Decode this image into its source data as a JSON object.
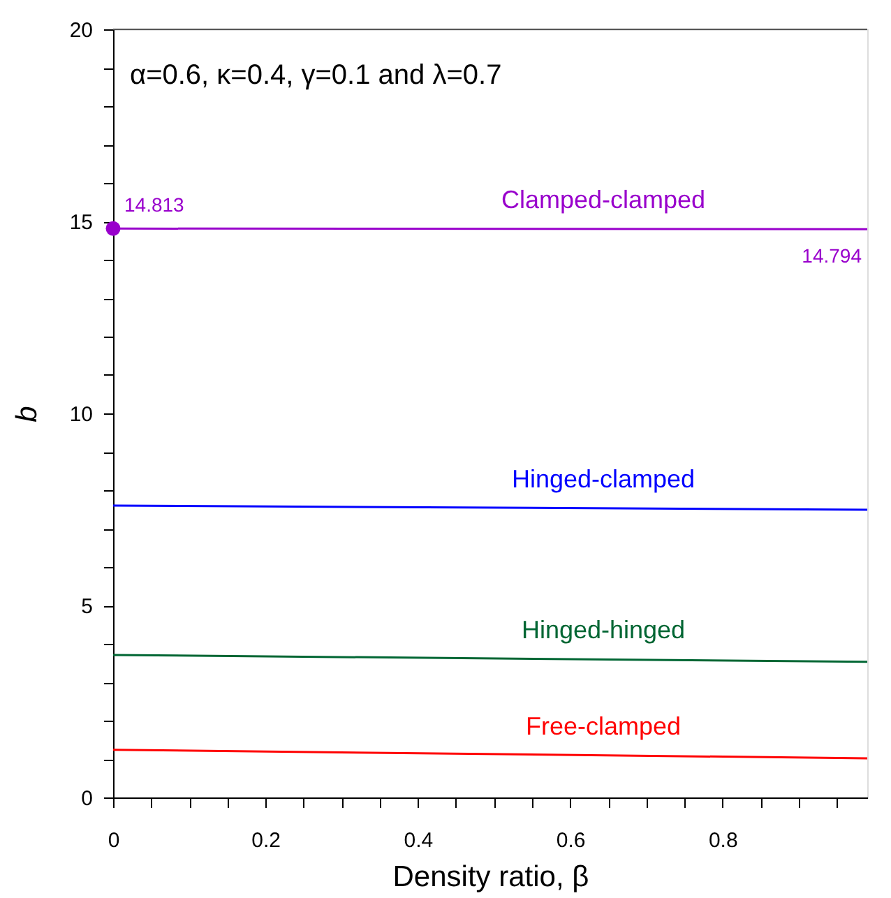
{
  "chart_data": {
    "type": "line",
    "xlabel": "Density ratio, β",
    "ylabel": "b",
    "annotations": [
      "α=0.6, κ=0.4, γ=0.1 and λ=0.7"
    ],
    "x": [
      0,
      0.99
    ],
    "series": [
      {
        "name": "Clamped-clamped",
        "color": "#9900cc",
        "values": [
          14.813,
          14.794
        ],
        "value_labels": [
          "14.813",
          "14.794"
        ],
        "marker": "circle"
      },
      {
        "name": "Hinged-clamped",
        "color": "#0000ff",
        "values": [
          7.6,
          7.49
        ]
      },
      {
        "name": "Hinged-hinged",
        "color": "#006633",
        "values": [
          3.71,
          3.53
        ]
      },
      {
        "name": "Free-clamped",
        "color": "#ff0000",
        "values": [
          1.24,
          1.02
        ]
      }
    ],
    "xlim": [
      0,
      0.99
    ],
    "xticks": [
      0,
      {
        "value": 0.05,
        "label": null
      },
      0.2,
      {
        "value": 0.1,
        "label": null
      },
      {
        "value": 0.15,
        "label": null
      },
      {
        "value": 0.25,
        "label": null
      },
      {
        "value": 0.3,
        "label": null
      },
      {
        "value": 0.35,
        "label": null
      },
      0.4,
      {
        "value": 0.45,
        "label": null
      },
      {
        "value": 0.5,
        "label": null
      },
      {
        "value": 0.55,
        "label": null
      },
      0.6,
      {
        "value": 0.65,
        "label": null
      },
      {
        "value": 0.7,
        "label": null
      },
      {
        "value": 0.75,
        "label": null
      },
      0.8,
      {
        "value": 0.85,
        "label": null
      },
      {
        "value": 0.9,
        "label": null
      },
      {
        "value": 0.95,
        "label": null
      }
    ],
    "ylim": [
      0,
      20
    ],
    "yticks": [
      0,
      {
        "value": 1,
        "label": null
      },
      {
        "value": 2,
        "label": null
      },
      {
        "value": 3,
        "label": null
      },
      {
        "value": 4,
        "label": null
      },
      5,
      {
        "value": 6,
        "label": null
      },
      {
        "value": 7,
        "label": null
      },
      {
        "value": 8,
        "label": null
      },
      {
        "value": 9,
        "label": null
      },
      10,
      {
        "value": 11,
        "label": null
      },
      {
        "value": 12,
        "label": null
      },
      {
        "value": 13,
        "label": null
      },
      {
        "value": 14,
        "label": null
      },
      15,
      {
        "value": 16,
        "label": null
      },
      {
        "value": 17,
        "label": null
      },
      {
        "value": 18,
        "label": null
      },
      {
        "value": 19,
        "label": null
      },
      20
    ],
    "grid": false,
    "legend": false,
    "line_style": "solid"
  }
}
